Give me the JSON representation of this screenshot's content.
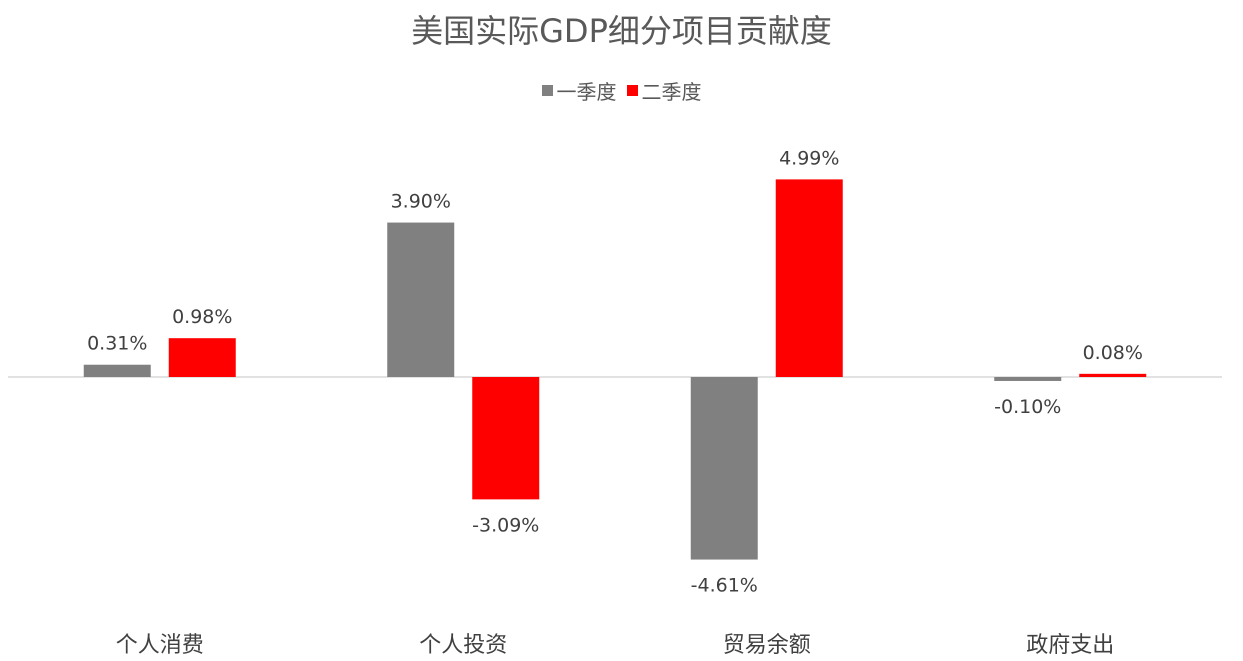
{
  "chart_data": {
    "type": "bar",
    "title": "美国实际GDP细分项目贡献度",
    "categories": [
      "个人消费",
      "个人投资",
      "贸易余额",
      "政府支出"
    ],
    "series": [
      {
        "name": "一季度",
        "color": "#808080",
        "values": [
          0.31,
          3.9,
          -4.61,
          -0.1
        ],
        "labels": [
          "0.31%",
          "3.90%",
          "-4.61%",
          "-0.10%"
        ]
      },
      {
        "name": "二季度",
        "color": "#ff0000",
        "values": [
          0.98,
          -3.09,
          4.99,
          0.08
        ],
        "labels": [
          "0.98%",
          "-3.09%",
          "4.99%",
          "0.08%"
        ]
      }
    ],
    "ylim": [
      -6,
      6
    ],
    "grid": false,
    "legend_position": "top"
  }
}
